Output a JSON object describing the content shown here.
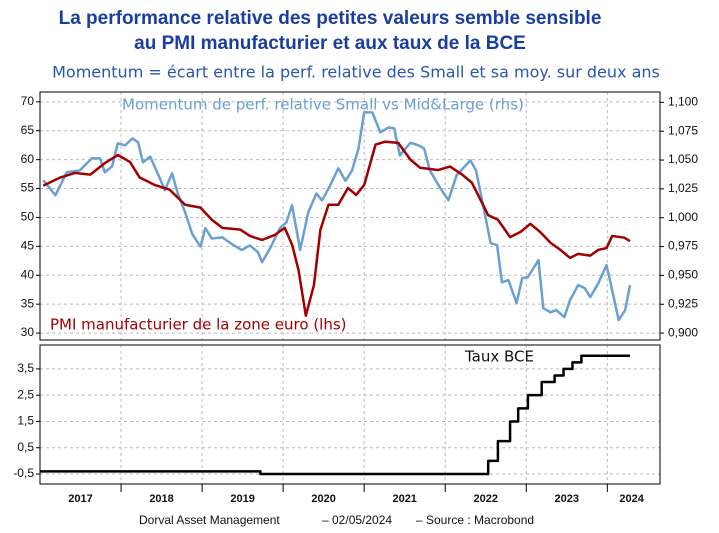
{
  "chart_data": [
    {
      "type": "line",
      "title": [
        "La performance relative des petites valeurs semble sensible",
        "au PMI manufacturier et aux taux de la BCE"
      ],
      "subtitle": "Momentum = écart entre la perf. relative des Small et sa moy. sur deux ans",
      "xlim": [
        2017,
        2024.65
      ],
      "xminorticks": [
        2018,
        2019,
        2020,
        2021,
        2022,
        2023,
        2024
      ],
      "ylim": [
        28.8,
        71.7
      ],
      "yticks": [
        30,
        35,
        40,
        45,
        50,
        55,
        60,
        65,
        70
      ],
      "y2lim": [
        0.894,
        1.109
      ],
      "y2ticks": [
        {
          "value": 0.9,
          "label": "0,900"
        },
        {
          "value": 0.925,
          "label": "0,925"
        },
        {
          "value": 0.95,
          "label": "0,950"
        },
        {
          "value": 0.975,
          "label": "0,975"
        },
        {
          "value": 1.0,
          "label": "1,000"
        },
        {
          "value": 1.025,
          "label": "1,025"
        },
        {
          "value": 1.05,
          "label": "1,050"
        },
        {
          "value": 1.075,
          "label": "1,075"
        },
        {
          "value": 1.1,
          "label": "1,100"
        }
      ],
      "grid": true,
      "series": [
        {
          "name": "Momentum de perf. relative Small vs Mid&Large (rhs)",
          "color": "#6a9fd4",
          "axis": "y2",
          "x": [
            2017.04,
            2017.19,
            2017.33,
            2017.49,
            2017.64,
            2017.74,
            2017.8,
            2017.89,
            2017.96,
            2018.05,
            2018.14,
            2018.21,
            2018.27,
            2018.36,
            2018.48,
            2018.54,
            2018.63,
            2018.7,
            2018.79,
            2018.88,
            2018.98,
            2019.04,
            2019.12,
            2019.25,
            2019.37,
            2019.49,
            2019.59,
            2019.69,
            2019.74,
            2019.84,
            2019.96,
            2020.04,
            2020.11,
            2020.21,
            2020.31,
            2020.41,
            2020.48,
            2020.58,
            2020.68,
            2020.77,
            2020.85,
            2020.93,
            2021.0,
            2021.1,
            2021.2,
            2021.3,
            2021.37,
            2021.44,
            2021.57,
            2021.67,
            2021.74,
            2021.81,
            2021.94,
            2022.04,
            2022.14,
            2022.31,
            2022.38,
            2022.48,
            2022.56,
            2022.64,
            2022.7,
            2022.78,
            2022.88,
            2022.95,
            2023.02,
            2023.15,
            2023.21,
            2023.3,
            2023.37,
            2023.47,
            2023.54,
            2023.64,
            2023.72,
            2023.79,
            2023.89,
            2023.99,
            2024.06,
            2024.14,
            2024.22,
            2024.28
          ],
          "values": [
            1.0325,
            1.0195,
            1.0394,
            1.041,
            1.0515,
            1.0515,
            1.0394,
            1.0446,
            1.0645,
            1.0628,
            1.0688,
            1.0654,
            1.048,
            1.053,
            1.034,
            1.0238,
            1.0385,
            1.021,
            1.0048,
            0.9857,
            0.975,
            0.991,
            0.982,
            0.983,
            0.977,
            0.972,
            0.976,
            0.97,
            0.9615,
            0.9736,
            0.991,
            0.996,
            1.0108,
            0.972,
            1.0048,
            1.021,
            1.015,
            1.028,
            1.0429,
            1.032,
            1.041,
            1.06,
            1.0913,
            1.0913,
            1.074,
            1.0783,
            1.0775,
            1.054,
            1.065,
            1.0628,
            1.06,
            1.041,
            1.0255,
            1.0152,
            1.0368,
            1.0498,
            1.041,
            1.0065,
            0.978,
            0.9762,
            0.944,
            0.946,
            0.926,
            0.9476,
            0.9485,
            0.9632,
            0.9216,
            0.918,
            0.92,
            0.9139,
            0.9286,
            0.9416,
            0.939,
            0.9312,
            0.9433,
            0.9589,
            0.9372,
            0.9113,
            0.92,
            0.9416
          ]
        },
        {
          "name": "PMI manufacturier de la zone euro (lhs)",
          "color": "#a00000",
          "axis": "y",
          "x": [
            2017.04,
            2017.25,
            2017.43,
            2017.62,
            2017.8,
            2017.96,
            2018.11,
            2018.23,
            2018.42,
            2018.6,
            2018.79,
            2018.98,
            2019.12,
            2019.25,
            2019.47,
            2019.59,
            2019.74,
            2019.9,
            2020.02,
            2020.11,
            2020.19,
            2020.28,
            2020.38,
            2020.46,
            2020.56,
            2020.68,
            2020.8,
            2020.9,
            2021.0,
            2021.14,
            2021.26,
            2021.42,
            2021.57,
            2021.69,
            2021.91,
            2022.06,
            2022.21,
            2022.33,
            2022.53,
            2022.65,
            2022.8,
            2022.93,
            2023.05,
            2023.17,
            2023.3,
            2023.42,
            2023.54,
            2023.64,
            2023.79,
            2023.89,
            2023.99,
            2024.06,
            2024.21,
            2024.28
          ],
          "values": [
            55.5,
            56.9,
            57.7,
            57.4,
            59.4,
            60.8,
            59.6,
            56.9,
            55.6,
            54.8,
            52.2,
            51.7,
            49.6,
            48.2,
            47.9,
            46.8,
            46.1,
            47.0,
            48.2,
            45.3,
            40.9,
            33.0,
            38.3,
            47.9,
            52.2,
            52.2,
            55.1,
            53.9,
            55.6,
            62.6,
            63.1,
            62.9,
            60.0,
            58.6,
            58.2,
            58.8,
            57.4,
            56.0,
            50.4,
            49.6,
            46.6,
            47.5,
            48.9,
            47.5,
            45.6,
            44.4,
            43.0,
            43.7,
            43.4,
            44.4,
            44.7,
            46.8,
            46.5,
            45.9
          ]
        }
      ]
    },
    {
      "type": "step",
      "xlim": [
        2017,
        2024.65
      ],
      "xminorticks": [
        2018,
        2019,
        2020,
        2021,
        2022,
        2023,
        2024
      ],
      "xticks": [
        {
          "value": 2017.5,
          "label": "2017"
        },
        {
          "value": 2018.5,
          "label": "2018"
        },
        {
          "value": 2019.5,
          "label": "2019"
        },
        {
          "value": 2020.5,
          "label": "2020"
        },
        {
          "value": 2021.5,
          "label": "2021"
        },
        {
          "value": 2022.5,
          "label": "2022"
        },
        {
          "value": 2023.5,
          "label": "2023"
        },
        {
          "value": 2024.3,
          "label": "2024"
        }
      ],
      "ylim": [
        -0.88,
        4.41
      ],
      "yticks": [
        {
          "value": -0.5,
          "label": "-0,5"
        },
        {
          "value": 0.5,
          "label": "0,5"
        },
        {
          "value": 1.5,
          "label": "1,5"
        },
        {
          "value": 2.5,
          "label": "2,5"
        },
        {
          "value": 3.5,
          "label": "3,5"
        }
      ],
      "grid": true,
      "series": [
        {
          "name": "Taux BCE",
          "color": "#000000",
          "axis": "y",
          "x": [
            2017.0,
            2019.72,
            2022.53,
            2022.65,
            2022.8,
            2022.9,
            2023.02,
            2023.19,
            2023.35,
            2023.46,
            2023.57,
            2023.68,
            2024.28
          ],
          "values": [
            -0.4,
            -0.5,
            0,
            0.75,
            1.5,
            2,
            2.5,
            3,
            3.25,
            3.5,
            3.75,
            4,
            4
          ]
        }
      ]
    }
  ],
  "footer": {
    "source": "Dorval Asset Management",
    "date": "– 02/05/2024",
    "credit": "–  Source : Macrobond"
  }
}
